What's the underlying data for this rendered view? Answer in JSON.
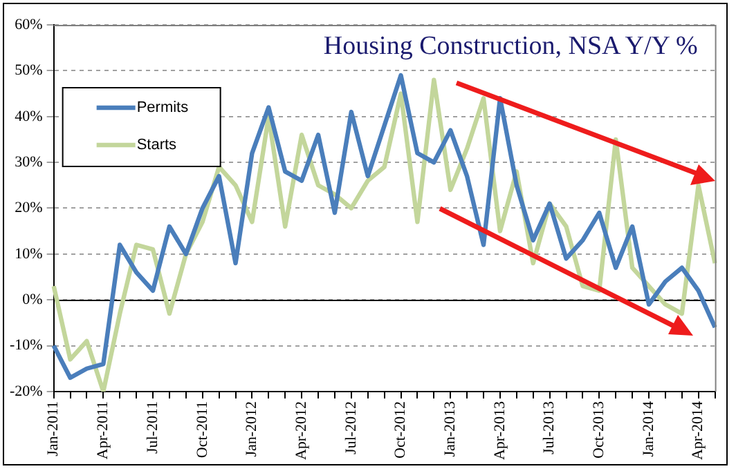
{
  "chart_data": {
    "type": "line",
    "title": "Housing Construction, NSA Y/Y %",
    "categories": [
      "Jan-2011",
      null,
      null,
      "Apr-2011",
      null,
      null,
      "Jul-2011",
      null,
      null,
      "Oct-2011",
      null,
      null,
      "Jan-2012",
      null,
      null,
      "Apr-2012",
      null,
      null,
      "Jul-2012",
      null,
      null,
      "Oct-2012",
      null,
      null,
      "Jan-2013",
      null,
      null,
      "Apr-2013",
      null,
      null,
      "Jul-2013",
      null,
      null,
      "Oct-2013",
      null,
      null,
      "Jan-2014",
      null,
      null,
      "Apr-2014",
      null
    ],
    "series": [
      {
        "name": "Permits",
        "color": "#4a7ebb",
        "values": [
          -10,
          -17,
          -15,
          -14,
          12,
          6,
          2,
          16,
          10,
          20,
          27,
          8,
          32,
          42,
          28,
          26,
          36,
          19,
          41,
          27,
          38,
          49,
          32,
          30,
          37,
          27,
          12,
          44,
          25,
          13,
          21,
          9,
          13,
          19,
          7,
          16,
          -1,
          4,
          7,
          2,
          -6
        ]
      },
      {
        "name": "Starts",
        "color": "#c3d69b",
        "values": [
          3,
          -13,
          -9,
          -20,
          -3,
          12,
          11,
          -3,
          10,
          17,
          29,
          25,
          17,
          40,
          16,
          36,
          25,
          23,
          20,
          26,
          29,
          45,
          17,
          48,
          24,
          33,
          44,
          15,
          28,
          8,
          21,
          16,
          3,
          2,
          35,
          7,
          3,
          -1,
          -3,
          25,
          8
        ]
      }
    ],
    "ylim": [
      -20,
      60
    ],
    "yticks": [
      {
        "value": -20,
        "label": "-20%"
      },
      {
        "value": -10,
        "label": "-10%"
      },
      {
        "value": 0,
        "label": "0%"
      },
      {
        "value": 10,
        "label": "10%"
      },
      {
        "value": 20,
        "label": "20%"
      },
      {
        "value": 30,
        "label": "30%"
      },
      {
        "value": 40,
        "label": "40%"
      },
      {
        "value": 50,
        "label": "50%"
      },
      {
        "value": 60,
        "label": "60%"
      }
    ],
    "ref_lines": [
      {
        "axis": "y",
        "value": 0,
        "color": "#000000",
        "line_style": "solid"
      }
    ],
    "grid": "y",
    "legend": "top left",
    "marker": "none",
    "line_style": "solid"
  }
}
